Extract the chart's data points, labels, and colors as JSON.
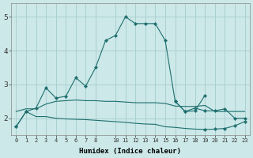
{
  "xlabel": "Humidex (Indice chaleur)",
  "bg_color": "#cce8e8",
  "grid_color": "#aad0d0",
  "line_color": "#1e6e6e",
  "xlim": [
    -0.5,
    23.5
  ],
  "ylim": [
    1.5,
    5.4
  ],
  "yticks": [
    2,
    3,
    4,
    5
  ],
  "xticks": [
    0,
    1,
    2,
    3,
    4,
    5,
    6,
    7,
    8,
    10,
    11,
    12,
    13,
    14,
    15,
    16,
    17,
    18,
    19,
    20,
    21,
    22,
    23
  ],
  "line1_x": [
    0,
    1,
    2,
    3,
    4,
    5,
    6,
    7,
    8,
    9,
    10,
    11,
    12,
    13,
    14,
    15,
    16,
    17,
    18,
    19
  ],
  "line1_y": [
    1.75,
    2.2,
    2.3,
    2.9,
    2.6,
    2.65,
    3.2,
    2.95,
    3.5,
    4.3,
    4.45,
    5.0,
    4.8,
    4.8,
    4.8,
    4.3,
    2.5,
    2.2,
    2.22,
    2.68
  ],
  "line1_marker_idx": [
    0,
    1,
    2,
    3,
    4,
    5,
    6,
    7,
    8,
    9,
    10,
    11,
    12,
    13,
    14,
    15,
    16,
    17,
    18,
    19
  ],
  "line2_x": [
    0,
    1,
    2,
    3,
    4,
    5,
    6,
    7,
    8,
    9,
    10,
    11,
    12,
    13,
    14,
    15,
    16,
    17,
    18,
    19,
    20,
    21,
    22,
    23
  ],
  "line2_y": [
    2.2,
    2.28,
    2.28,
    2.42,
    2.5,
    2.52,
    2.54,
    2.52,
    2.52,
    2.5,
    2.5,
    2.48,
    2.46,
    2.46,
    2.46,
    2.44,
    2.36,
    2.35,
    2.35,
    2.38,
    2.2,
    2.2,
    2.2,
    2.2
  ],
  "line3_x": [
    0,
    1,
    2,
    3,
    4,
    5,
    6,
    7,
    8,
    9,
    10,
    11,
    12,
    13,
    14,
    15,
    16,
    17,
    18,
    19,
    20,
    21,
    22,
    23
  ],
  "line3_y": [
    1.75,
    2.2,
    2.05,
    2.05,
    2.0,
    1.98,
    1.97,
    1.96,
    1.94,
    1.92,
    1.9,
    1.88,
    1.85,
    1.83,
    1.82,
    1.75,
    1.73,
    1.7,
    1.68,
    1.67,
    1.68,
    1.7,
    1.78,
    1.9
  ],
  "line3_marker_idx": [
    0,
    1,
    19,
    20,
    21,
    22,
    23
  ],
  "line4_x": [
    16,
    17,
    18,
    19,
    20,
    21,
    22,
    23
  ],
  "line4_y": [
    2.5,
    2.2,
    2.3,
    2.22,
    2.22,
    2.28,
    2.0,
    2.0
  ],
  "line4_marker_idx": [
    0,
    1,
    2,
    3,
    4,
    5,
    6,
    7
  ]
}
